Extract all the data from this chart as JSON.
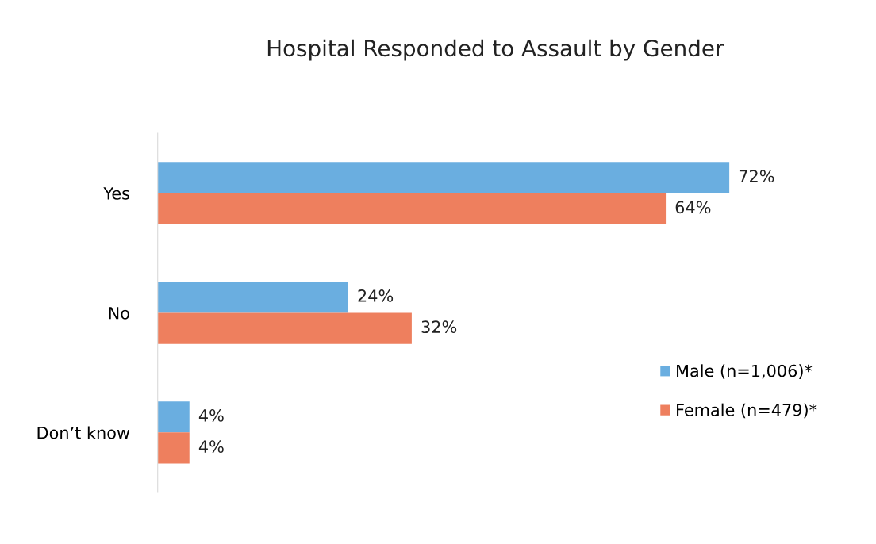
{
  "chart_data": {
    "type": "bar",
    "orientation": "horizontal",
    "title": "Hospital Responded to Assault by Gender",
    "categories": [
      "Yes",
      "No",
      "Don’t know"
    ],
    "series": [
      {
        "name": "Male (n=1,006)*",
        "color": "#6aaee0",
        "values": [
          72,
          24,
          4
        ],
        "value_labels": [
          "72%",
          "24%",
          "4%"
        ]
      },
      {
        "name": "Female (n=479)*",
        "color": "#ee7f5e",
        "values": [
          64,
          32,
          4
        ],
        "value_labels": [
          "64%",
          "32%",
          "4%"
        ]
      }
    ],
    "legend": "right",
    "grid": false
  }
}
